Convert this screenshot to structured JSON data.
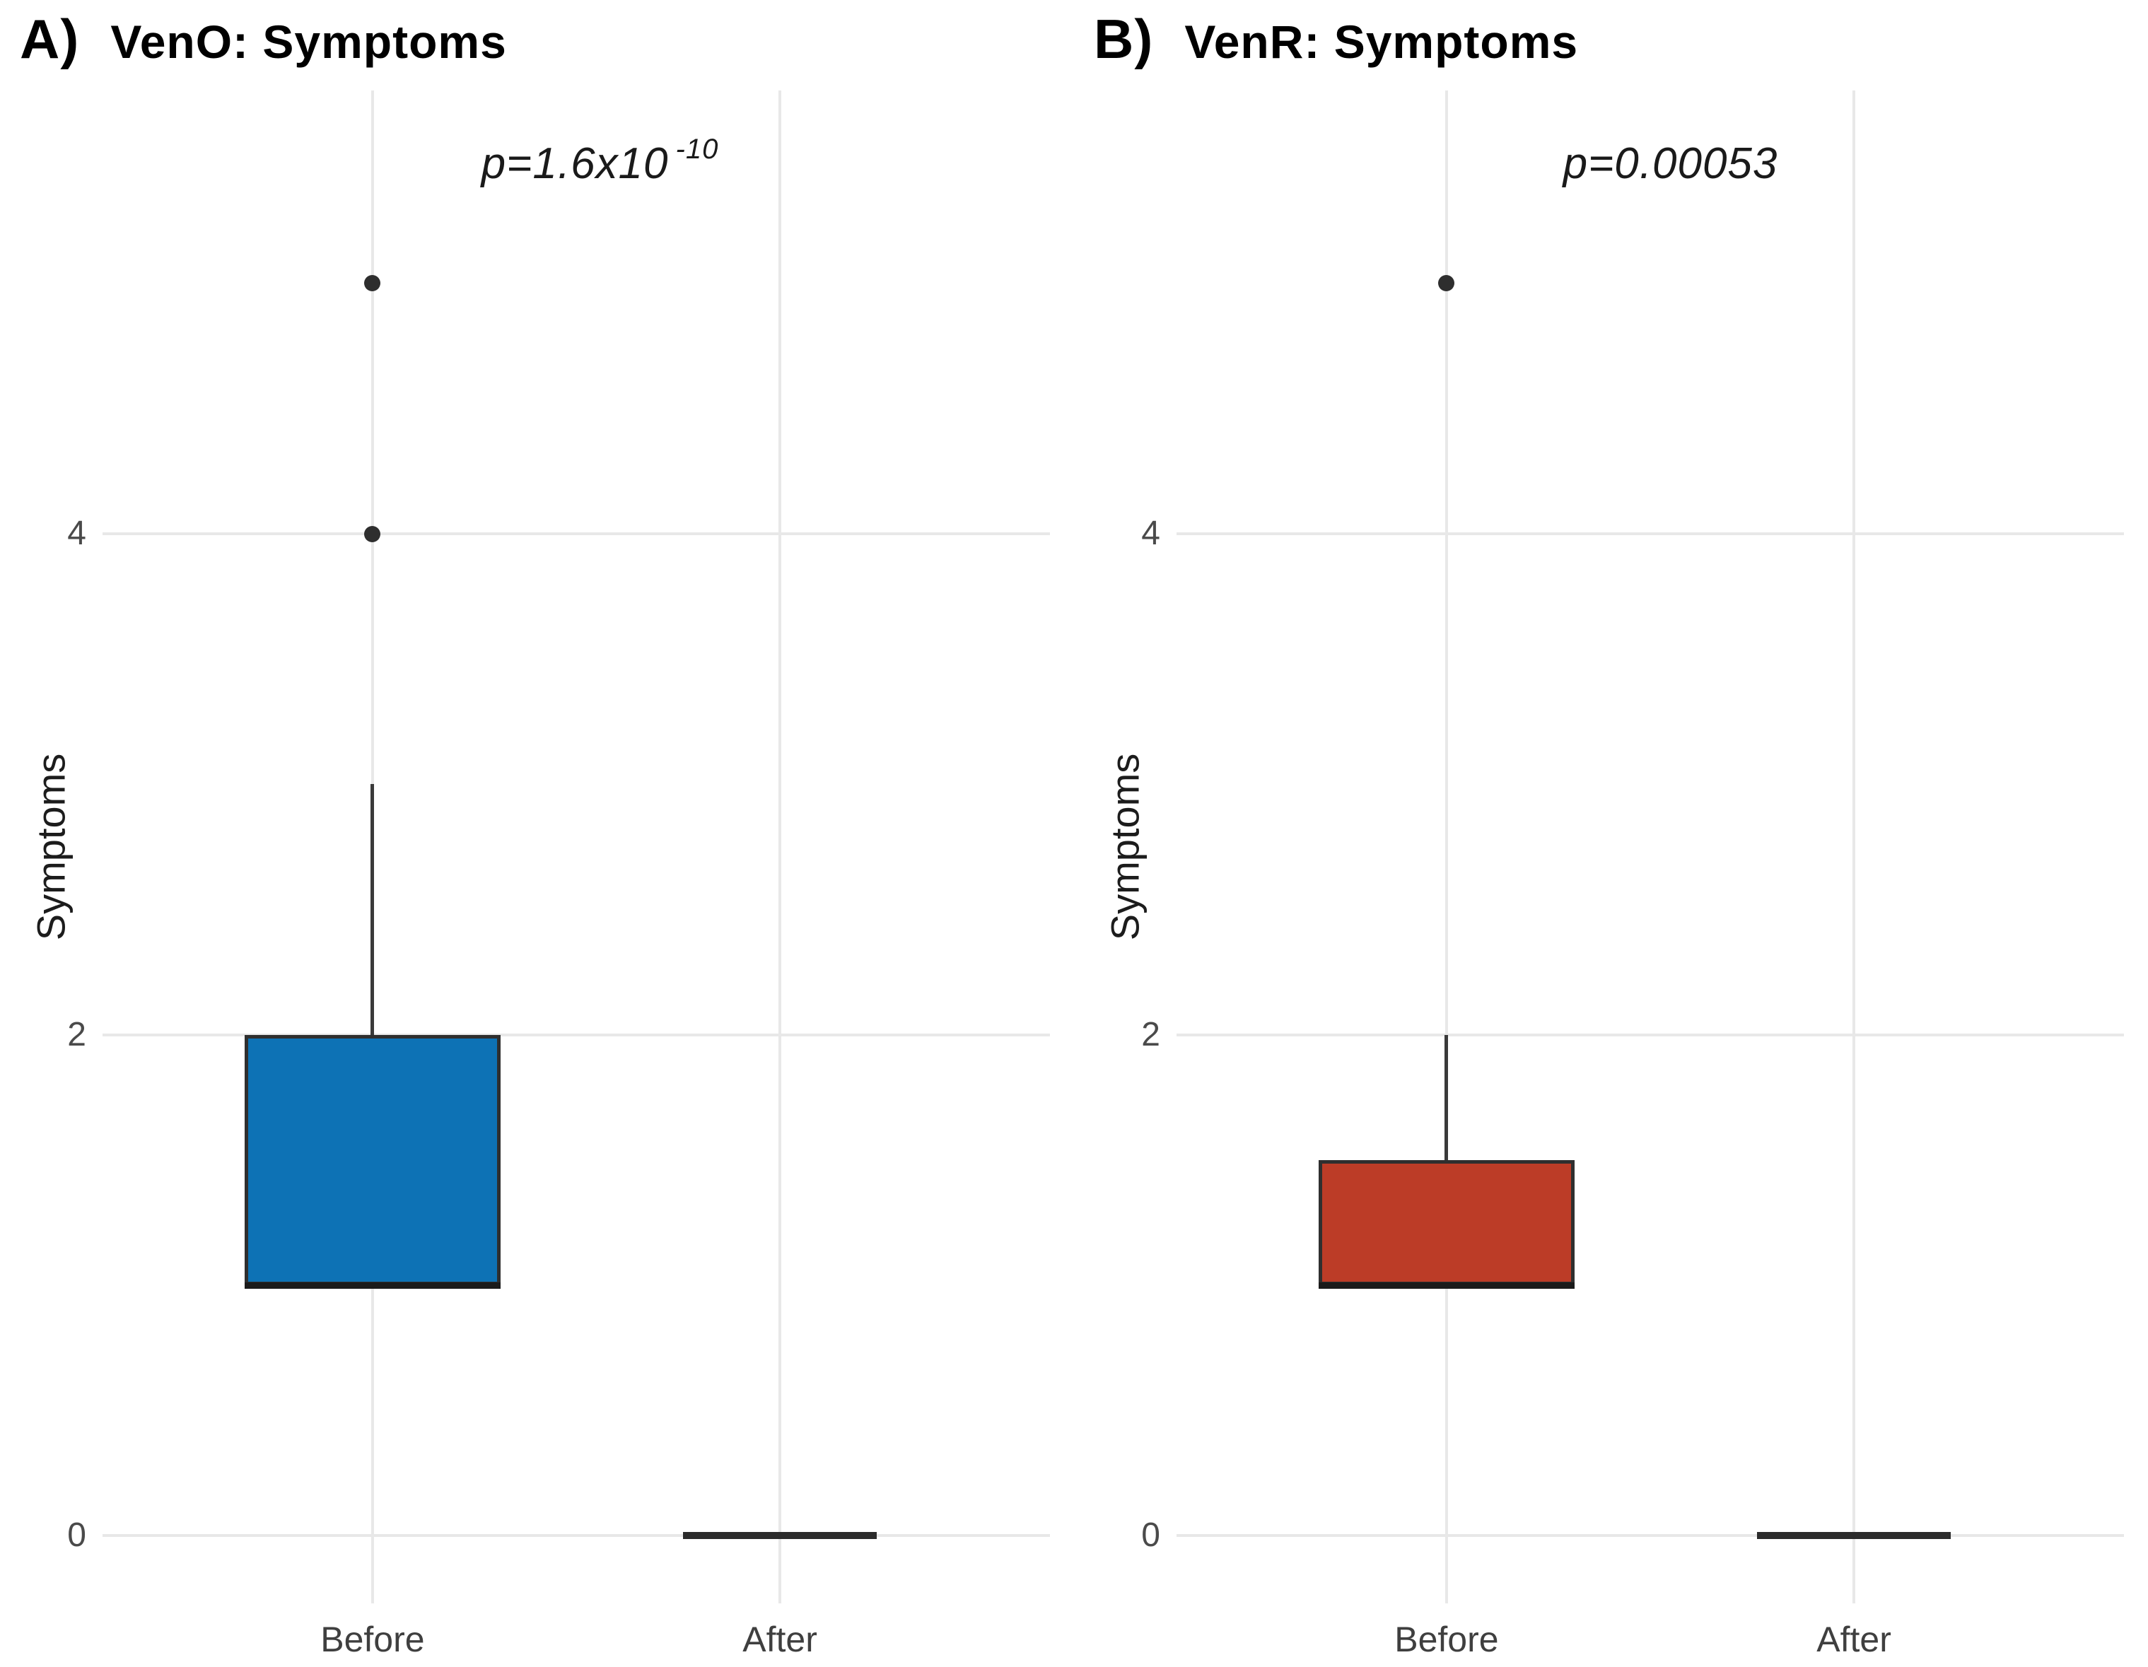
{
  "figure": {
    "background": "#ffffff"
  },
  "style": {
    "grid_color": "#e8e8e8",
    "box_border_color": "#2f2f2f",
    "median_color": "#1b1b1b",
    "whisker_color": "#3a3a3a",
    "outlier_color": "#2e2e2e",
    "flat_line_color": "#2b2b2b",
    "tick_text_color": "#4a4a4a",
    "category_text_color": "#3f3f3f",
    "axis_label_color": "#1c1c1c",
    "p_text_color": "#1a1a1a"
  },
  "chart_data": [
    {
      "type": "boxplot",
      "panel_tag": "A)",
      "title": "VenO: Symptoms",
      "p_label": "p=1.6x10",
      "p_exponent": "-10",
      "ylabel": "Symptoms",
      "yticks": [
        0,
        2,
        4
      ],
      "ylim": [
        -0.27,
        5.77
      ],
      "grid": true,
      "categories": [
        "Before",
        "After"
      ],
      "box_fill": "#0d72b5",
      "series": [
        {
          "category": "Before",
          "q1": 1,
          "median": 1,
          "q3": 2,
          "whisker_low": 1,
          "whisker_high": 3,
          "outliers": [
            4,
            5
          ]
        },
        {
          "category": "After",
          "q1": 0,
          "median": 0,
          "q3": 0,
          "whisker_low": 0,
          "whisker_high": 0,
          "outliers": []
        }
      ]
    },
    {
      "type": "boxplot",
      "panel_tag": "B)",
      "title": "VenR: Symptoms",
      "p_label": "p=0.00053",
      "p_exponent": "",
      "ylabel": "Symptoms",
      "yticks": [
        0,
        2,
        4
      ],
      "ylim": [
        -0.27,
        5.77
      ],
      "grid": true,
      "categories": [
        "Before",
        "After"
      ],
      "box_fill": "#bc3c27",
      "series": [
        {
          "category": "Before",
          "q1": 1,
          "median": 1,
          "q3": 1.5,
          "whisker_low": 1,
          "whisker_high": 2,
          "outliers": [
            5
          ]
        },
        {
          "category": "After",
          "q1": 0,
          "median": 0,
          "q3": 0,
          "whisker_low": 0,
          "whisker_high": 0,
          "outliers": []
        }
      ]
    }
  ]
}
